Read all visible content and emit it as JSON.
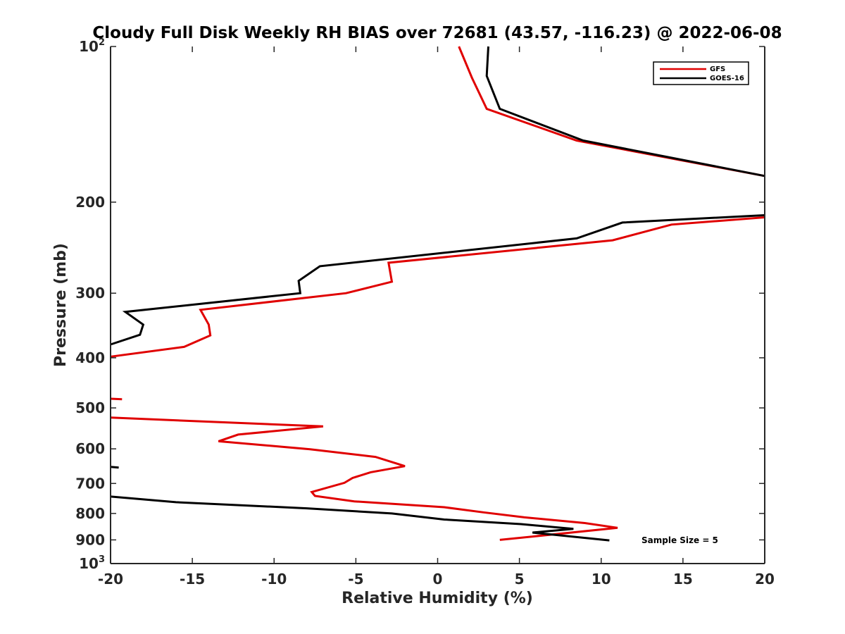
{
  "chart_data": {
    "type": "line",
    "title": "Cloudy Full Disk Weekly RH BIAS over 72681 (43.57, -116.23) @ 2022-06-08",
    "xlabel": "Relative Humidity (%)",
    "ylabel": "Pressure (mb)",
    "xlim": [
      -20,
      20
    ],
    "ylim": [
      100,
      1000
    ],
    "y_scale": "log",
    "y_reversed": true,
    "x_ticks": [
      "-20",
      "-15",
      "-10",
      "-5",
      "0",
      "5",
      "10",
      "15",
      "20"
    ],
    "y_ticks": [
      {
        "value": 100,
        "base": "10",
        "exp": "2"
      },
      {
        "value": 200,
        "label": "200"
      },
      {
        "value": 300,
        "label": "300"
      },
      {
        "value": 400,
        "label": "400"
      },
      {
        "value": 500,
        "label": "500"
      },
      {
        "value": 600,
        "label": "600"
      },
      {
        "value": 700,
        "label": "700"
      },
      {
        "value": 800,
        "label": "800"
      },
      {
        "value": 900,
        "label": "900"
      },
      {
        "value": 1000,
        "base": "10",
        "exp": "3"
      }
    ],
    "grid": false,
    "legend_position": "top-right",
    "series": [
      {
        "name": "GFS",
        "color": "#e00000",
        "segments": [
          [
            [
              1.3,
              100
            ],
            [
              2.1,
              115
            ],
            [
              3.0,
              132
            ],
            [
              8.5,
              152
            ],
            [
              20,
              178
            ]
          ],
          [
            [
              20,
              214
            ],
            [
              14.3,
              221
            ],
            [
              10.7,
              237
            ],
            [
              -3.0,
              262
            ],
            [
              -2.8,
              285
            ],
            [
              -5.6,
              300
            ],
            [
              -14.5,
              323
            ],
            [
              -14.0,
              345
            ],
            [
              -13.9,
              362
            ],
            [
              -15.5,
              381
            ],
            [
              -20,
              398
            ]
          ],
          [
            [
              -20,
              480
            ],
            [
              -19.3,
              481
            ]
          ],
          [
            [
              -20,
              522
            ],
            [
              -7.0,
              543
            ],
            [
              -12.2,
              563
            ],
            [
              -13.4,
              580
            ],
            [
              -7.8,
              601
            ],
            [
              -3.8,
              622
            ],
            [
              -2.0,
              648
            ],
            [
              -4.1,
              666
            ],
            [
              -5.2,
              683
            ],
            [
              -5.7,
              698
            ],
            [
              -7.7,
              727
            ],
            [
              -7.5,
              740
            ],
            [
              -5.1,
              758
            ],
            [
              0.4,
              778
            ],
            [
              2.8,
              796
            ],
            [
              5.3,
              814
            ],
            [
              9.0,
              835
            ],
            [
              11.0,
              853
            ],
            [
              3.8,
              900
            ]
          ]
        ]
      },
      {
        "name": "GOES-16",
        "color": "#000000",
        "segments": [
          [
            [
              3.1,
              100
            ],
            [
              3.0,
              114
            ],
            [
              3.8,
              132
            ],
            [
              8.9,
              152
            ],
            [
              20,
              178
            ]
          ],
          [
            [
              20,
              212
            ],
            [
              11.3,
              219
            ],
            [
              8.5,
              235
            ],
            [
              -7.2,
              266
            ],
            [
              -8.5,
              284
            ],
            [
              -8.4,
              300
            ],
            [
              -19.1,
              326
            ],
            [
              -18.0,
              345
            ],
            [
              -18.2,
              361
            ],
            [
              -20,
              377
            ]
          ],
          [
            [
              -20,
              650
            ],
            [
              -19.5,
              652
            ]
          ],
          [
            [
              -20,
              742
            ],
            [
              -16.0,
              761
            ],
            [
              -8.0,
              782
            ],
            [
              -2.8,
              800
            ],
            [
              0.4,
              822
            ],
            [
              5.1,
              839
            ],
            [
              8.3,
              857
            ],
            [
              5.8,
              871
            ],
            [
              10.5,
              902
            ]
          ]
        ]
      }
    ]
  },
  "legend": [
    {
      "label": "GFS",
      "color": "#e00000"
    },
    {
      "label": "GOES-16",
      "color": "#000000"
    }
  ],
  "annotation": "Sample Size = 5"
}
